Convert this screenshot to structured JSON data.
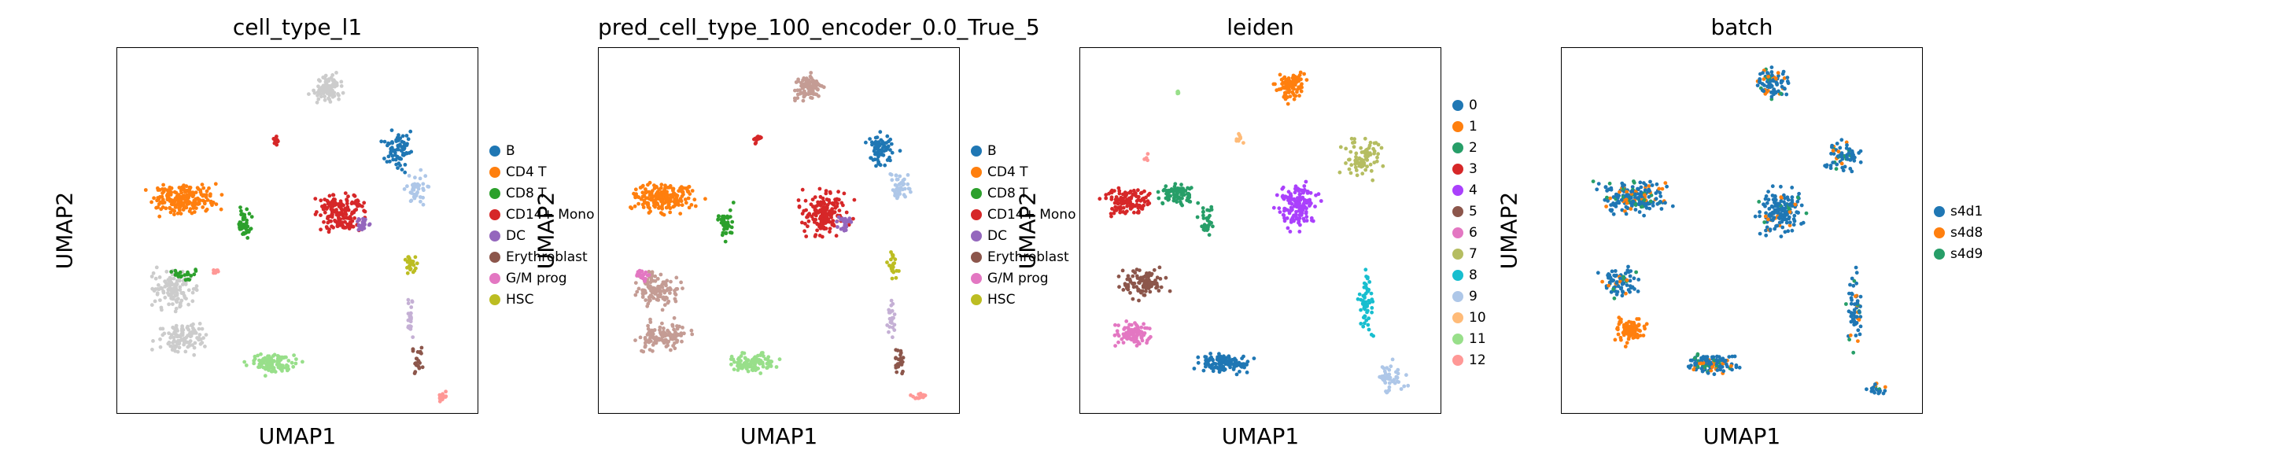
{
  "figure": {
    "xlabel": "UMAP1",
    "ylabel": "UMAP2"
  },
  "chart_data": [
    {
      "type": "scatter",
      "title": "cell_type_l1",
      "xlabel": "UMAP1",
      "ylabel": "UMAP2",
      "grid": false,
      "legend_position": "right",
      "categories": [
        "B",
        "CD4 T",
        "CD8 T",
        "CD14+ Mono",
        "DC",
        "Erythroblast",
        "G/M prog",
        "HSC"
      ],
      "colors": [
        "#1f77b4",
        "#ff7f0e",
        "#2ca02c",
        "#d62728",
        "#9467bd",
        "#8c564b",
        "#e377c2",
        "#bcbd22"
      ],
      "clusters": [
        {
          "cat": "#cccccc",
          "cx": 0.58,
          "cy": 0.11,
          "sx": 0.04,
          "sy": 0.035,
          "n": 90
        },
        {
          "cat": "B",
          "cx": 0.78,
          "cy": 0.28,
          "sx": 0.04,
          "sy": 0.05,
          "n": 70
        },
        {
          "cat": "#aec7e8",
          "cx": 0.83,
          "cy": 0.38,
          "sx": 0.03,
          "sy": 0.04,
          "n": 40
        },
        {
          "cat": "CD4 T",
          "cx": 0.18,
          "cy": 0.41,
          "sx": 0.09,
          "sy": 0.04,
          "n": 200
        },
        {
          "cat": "CD8 T",
          "cx": 0.35,
          "cy": 0.48,
          "sx": 0.02,
          "sy": 0.04,
          "n": 40
        },
        {
          "cat": "CD14+ Mono",
          "cx": 0.62,
          "cy": 0.45,
          "sx": 0.06,
          "sy": 0.06,
          "n": 160
        },
        {
          "cat": "CD14+ Mono",
          "cx": 0.44,
          "cy": 0.25,
          "sx": 0.01,
          "sy": 0.015,
          "n": 12
        },
        {
          "cat": "DC",
          "cx": 0.68,
          "cy": 0.48,
          "sx": 0.02,
          "sy": 0.02,
          "n": 25
        },
        {
          "cat": "HSC",
          "cx": 0.81,
          "cy": 0.59,
          "sx": 0.015,
          "sy": 0.03,
          "n": 25
        },
        {
          "cat": "#c5b0d5",
          "cx": 0.81,
          "cy": 0.74,
          "sx": 0.01,
          "sy": 0.06,
          "n": 25
        },
        {
          "cat": "Erythroblast",
          "cx": 0.83,
          "cy": 0.86,
          "sx": 0.015,
          "sy": 0.04,
          "n": 25
        },
        {
          "cat": "#ff9896",
          "cx": 0.89,
          "cy": 0.95,
          "sx": 0.03,
          "sy": 0.01,
          "n": 18
        },
        {
          "cat": "#cccccc",
          "cx": 0.16,
          "cy": 0.66,
          "sx": 0.06,
          "sy": 0.05,
          "n": 120
        },
        {
          "cat": "#cccccc",
          "cx": 0.18,
          "cy": 0.79,
          "sx": 0.07,
          "sy": 0.04,
          "n": 110
        },
        {
          "cat": "#98df8a",
          "cx": 0.43,
          "cy": 0.86,
          "sx": 0.06,
          "sy": 0.025,
          "n": 110
        },
        {
          "cat": "CD8 T",
          "cx": 0.18,
          "cy": 0.62,
          "sx": 0.05,
          "sy": 0.015,
          "n": 20
        },
        {
          "cat": "#ff9896",
          "cx": 0.27,
          "cy": 0.61,
          "sx": 0.01,
          "sy": 0.01,
          "n": 8
        }
      ]
    },
    {
      "type": "scatter",
      "title": "pred_cell_type_100_encoder_0.0_True_5",
      "xlabel": "UMAP1",
      "ylabel": "UMAP2",
      "grid": false,
      "legend_position": "right",
      "categories": [
        "B",
        "CD4 T",
        "CD8 T",
        "CD14+ Mono",
        "DC",
        "Erythroblast",
        "G/M prog",
        "HSC"
      ],
      "colors": [
        "#1f77b4",
        "#ff7f0e",
        "#2ca02c",
        "#d62728",
        "#9467bd",
        "#8c564b",
        "#e377c2",
        "#bcbd22"
      ],
      "clusters": [
        {
          "cat": "#c49c94",
          "cx": 0.58,
          "cy": 0.11,
          "sx": 0.04,
          "sy": 0.035,
          "n": 90
        },
        {
          "cat": "B",
          "cx": 0.78,
          "cy": 0.28,
          "sx": 0.04,
          "sy": 0.05,
          "n": 70
        },
        {
          "cat": "#aec7e8",
          "cx": 0.83,
          "cy": 0.38,
          "sx": 0.03,
          "sy": 0.04,
          "n": 40
        },
        {
          "cat": "CD4 T",
          "cx": 0.18,
          "cy": 0.41,
          "sx": 0.09,
          "sy": 0.04,
          "n": 200
        },
        {
          "cat": "CD8 T",
          "cx": 0.35,
          "cy": 0.48,
          "sx": 0.02,
          "sy": 0.04,
          "n": 40
        },
        {
          "cat": "CD14+ Mono",
          "cx": 0.62,
          "cy": 0.45,
          "sx": 0.06,
          "sy": 0.06,
          "n": 160
        },
        {
          "cat": "CD14+ Mono",
          "cx": 0.44,
          "cy": 0.25,
          "sx": 0.01,
          "sy": 0.015,
          "n": 12
        },
        {
          "cat": "DC",
          "cx": 0.68,
          "cy": 0.48,
          "sx": 0.02,
          "sy": 0.02,
          "n": 25
        },
        {
          "cat": "HSC",
          "cx": 0.81,
          "cy": 0.59,
          "sx": 0.015,
          "sy": 0.03,
          "n": 25
        },
        {
          "cat": "#c5b0d5",
          "cx": 0.81,
          "cy": 0.74,
          "sx": 0.01,
          "sy": 0.06,
          "n": 25
        },
        {
          "cat": "Erythroblast",
          "cx": 0.83,
          "cy": 0.86,
          "sx": 0.015,
          "sy": 0.04,
          "n": 25
        },
        {
          "cat": "#ff9896",
          "cx": 0.89,
          "cy": 0.95,
          "sx": 0.03,
          "sy": 0.01,
          "n": 18
        },
        {
          "cat": "#c49c94",
          "cx": 0.16,
          "cy": 0.66,
          "sx": 0.06,
          "sy": 0.05,
          "n": 120
        },
        {
          "cat": "#c49c94",
          "cx": 0.18,
          "cy": 0.79,
          "sx": 0.07,
          "sy": 0.04,
          "n": 110
        },
        {
          "cat": "#98df8a",
          "cx": 0.43,
          "cy": 0.86,
          "sx": 0.06,
          "sy": 0.025,
          "n": 110
        },
        {
          "cat": "G/M prog",
          "cx": 0.12,
          "cy": 0.62,
          "sx": 0.02,
          "sy": 0.02,
          "n": 20
        }
      ]
    },
    {
      "type": "scatter",
      "title": "leiden",
      "xlabel": "UMAP1",
      "ylabel": "UMAP2",
      "grid": false,
      "legend_position": "right",
      "categories": [
        "0",
        "1",
        "2",
        "3",
        "4",
        "5",
        "6",
        "7",
        "8",
        "9",
        "10",
        "11",
        "12"
      ],
      "colors": [
        "#1f77b4",
        "#ff7f0e",
        "#279e68",
        "#d62728",
        "#aa40fc",
        "#8c564b",
        "#e377c2",
        "#b5bd61",
        "#17becf",
        "#aec7e8",
        "#ffbb78",
        "#98df8a",
        "#ff9896"
      ],
      "clusters": [
        {
          "cat": "1",
          "cx": 0.58,
          "cy": 0.1,
          "sx": 0.04,
          "sy": 0.04,
          "n": 90
        },
        {
          "cat": "7",
          "cx": 0.78,
          "cy": 0.3,
          "sx": 0.05,
          "sy": 0.05,
          "n": 80
        },
        {
          "cat": "3",
          "cx": 0.13,
          "cy": 0.42,
          "sx": 0.06,
          "sy": 0.035,
          "n": 120
        },
        {
          "cat": "2",
          "cx": 0.27,
          "cy": 0.4,
          "sx": 0.05,
          "sy": 0.03,
          "n": 80
        },
        {
          "cat": "2",
          "cx": 0.35,
          "cy": 0.48,
          "sx": 0.02,
          "sy": 0.04,
          "n": 30
        },
        {
          "cat": "4",
          "cx": 0.6,
          "cy": 0.43,
          "sx": 0.05,
          "sy": 0.06,
          "n": 150
        },
        {
          "cat": "8",
          "cx": 0.79,
          "cy": 0.7,
          "sx": 0.02,
          "sy": 0.08,
          "n": 60
        },
        {
          "cat": "9",
          "cx": 0.86,
          "cy": 0.9,
          "sx": 0.04,
          "sy": 0.04,
          "n": 50
        },
        {
          "cat": "5",
          "cx": 0.17,
          "cy": 0.64,
          "sx": 0.06,
          "sy": 0.04,
          "n": 100
        },
        {
          "cat": "6",
          "cx": 0.15,
          "cy": 0.78,
          "sx": 0.05,
          "sy": 0.03,
          "n": 90
        },
        {
          "cat": "0",
          "cx": 0.4,
          "cy": 0.86,
          "sx": 0.07,
          "sy": 0.025,
          "n": 120
        },
        {
          "cat": "10",
          "cx": 0.44,
          "cy": 0.25,
          "sx": 0.01,
          "sy": 0.015,
          "n": 10
        },
        {
          "cat": "11",
          "cx": 0.27,
          "cy": 0.12,
          "sx": 0.005,
          "sy": 0.008,
          "n": 5
        },
        {
          "cat": "12",
          "cx": 0.18,
          "cy": 0.3,
          "sx": 0.01,
          "sy": 0.01,
          "n": 4
        }
      ]
    },
    {
      "type": "scatter",
      "title": "batch",
      "xlabel": "UMAP1",
      "ylabel": "UMAP2",
      "grid": false,
      "legend_position": "right",
      "categories": [
        "s4d1",
        "s4d8",
        "s4d9"
      ],
      "colors": [
        "#1f77b4",
        "#ff7f0e",
        "#279e68"
      ],
      "clusters": [
        {
          "cat": "mix",
          "cx": 0.58,
          "cy": 0.1,
          "sx": 0.04,
          "sy": 0.04,
          "n": 90
        },
        {
          "cat": "mix",
          "cx": 0.78,
          "cy": 0.3,
          "sx": 0.05,
          "sy": 0.05,
          "n": 70
        },
        {
          "cat": "mix",
          "cx": 0.2,
          "cy": 0.41,
          "sx": 0.09,
          "sy": 0.04,
          "n": 200
        },
        {
          "cat": "mix",
          "cx": 0.6,
          "cy": 0.45,
          "sx": 0.06,
          "sy": 0.06,
          "n": 160
        },
        {
          "cat": "mix",
          "cx": 0.81,
          "cy": 0.72,
          "sx": 0.02,
          "sy": 0.1,
          "n": 60
        },
        {
          "cat": "mix",
          "cx": 0.87,
          "cy": 0.93,
          "sx": 0.03,
          "sy": 0.02,
          "n": 20
        },
        {
          "cat": "mix",
          "cx": 0.16,
          "cy": 0.64,
          "sx": 0.05,
          "sy": 0.04,
          "n": 80
        },
        {
          "cat": "s4d8",
          "cx": 0.19,
          "cy": 0.77,
          "sx": 0.04,
          "sy": 0.035,
          "n": 90
        },
        {
          "cat": "mix",
          "cx": 0.42,
          "cy": 0.86,
          "sx": 0.07,
          "sy": 0.025,
          "n": 120
        }
      ]
    }
  ]
}
